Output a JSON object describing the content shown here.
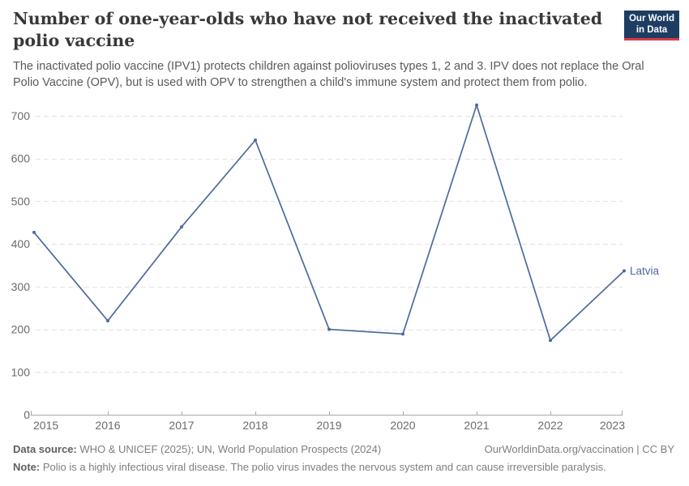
{
  "header": {
    "title": "Number of one-year-olds who have not received the inactivated polio vaccine",
    "subtitle": "The inactivated polio vaccine (IPV1) protects children against polioviruses types 1, 2 and 3. IPV does not replace the Oral Polio Vaccine (OPV), but is used with OPV to strengthen a child's immune system and protect them from polio.",
    "logo": {
      "line1": "Our World",
      "line2": "in Data",
      "bg_color": "#1d3d63",
      "accent_color": "#d93a46"
    }
  },
  "chart_data": {
    "type": "line",
    "title": "Number of one-year-olds who have not received the inactivated polio vaccine",
    "x": [
      2015,
      2016,
      2017,
      2018,
      2019,
      2020,
      2021,
      2022,
      2023
    ],
    "series": [
      {
        "name": "Latvia",
        "color": "#4C6A9C",
        "values": [
          427,
          220,
          440,
          643,
          200,
          189,
          725,
          174,
          337
        ]
      }
    ],
    "ylim": [
      0,
      700
    ],
    "yticks": [
      0,
      100,
      200,
      300,
      400,
      500,
      600,
      700
    ],
    "xlabel": "",
    "ylabel": "",
    "grid": true,
    "grid_style": "dashed",
    "grid_color": "#e2e2e2",
    "axis_color": "#a9a9a9",
    "tick_label_color": "#6b6b6b",
    "legend_position": "end-of-line-label",
    "end_label": "Latvia"
  },
  "footer": {
    "datasource_label": "Data source:",
    "datasource_text": " WHO & UNICEF (2025); UN, World Population Prospects (2024)",
    "link_text": "OurWorldinData.org/vaccination | CC BY",
    "note_label": "Note:",
    "note_text": " Polio is a highly infectious viral disease. The polio virus invades the nervous system and can cause irreversible paralysis."
  }
}
